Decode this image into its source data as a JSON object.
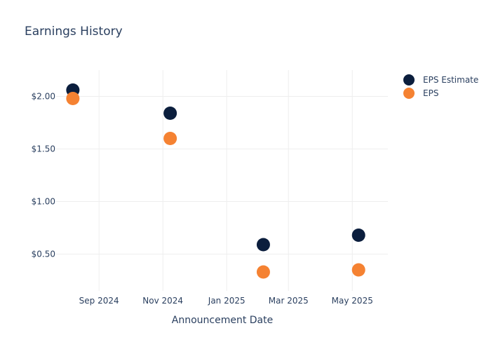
{
  "chart_data": {
    "type": "scatter",
    "title": "Earnings History",
    "xlabel": "Announcement Date",
    "ylabel": "",
    "x_ticks": [
      {
        "date": "2024-09-01",
        "label": "Sep 2024"
      },
      {
        "date": "2024-11-01",
        "label": "Nov 2024"
      },
      {
        "date": "2025-01-01",
        "label": "Jan 2025"
      },
      {
        "date": "2025-03-01",
        "label": "Mar 2025"
      },
      {
        "date": "2025-05-01",
        "label": "May 2025"
      }
    ],
    "y_ticks": [
      {
        "value": 0.5,
        "label": "$0.50"
      },
      {
        "value": 1.0,
        "label": "$1.00"
      },
      {
        "value": 1.5,
        "label": "$1.50"
      },
      {
        "value": 2.0,
        "label": "$2.00"
      }
    ],
    "xlim": [
      "2024-07-22",
      "2025-06-04"
    ],
    "ylim": [
      0.15,
      2.25
    ],
    "grid": true,
    "legend_position": "top-right",
    "series": [
      {
        "name": "EPS Estimate",
        "color": "#0b1e3d",
        "points": [
          {
            "x": "2024-08-07",
            "y": 2.06
          },
          {
            "x": "2024-11-08",
            "y": 1.84
          },
          {
            "x": "2025-02-05",
            "y": 0.59
          },
          {
            "x": "2025-05-07",
            "y": 0.68
          }
        ]
      },
      {
        "name": "EPS",
        "color": "#f58232",
        "points": [
          {
            "x": "2024-08-07",
            "y": 1.98
          },
          {
            "x": "2024-11-08",
            "y": 1.6
          },
          {
            "x": "2025-02-05",
            "y": 0.33
          },
          {
            "x": "2025-05-07",
            "y": 0.35
          }
        ]
      }
    ]
  }
}
